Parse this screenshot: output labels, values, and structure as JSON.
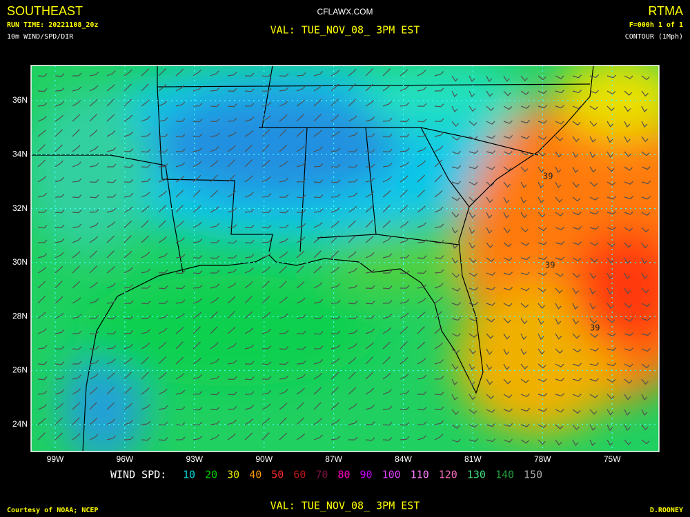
{
  "header": {
    "region": "SOUTHEAST",
    "run_time": "RUN TIME: 20221108_20z",
    "field": "10m WIND/SPD/DIR",
    "site": "CFLAWX.COM",
    "valid": "VAL: TUE_NOV_08_ 3PM EST",
    "model": "RTMA",
    "forecast": "F=000h 1 of 1",
    "contour": "CONTOUR (1Mph)"
  },
  "map": {
    "lat_labels": [
      "36N",
      "34N",
      "32N",
      "30N",
      "28N",
      "26N",
      "24N"
    ],
    "lon_labels": [
      "99W",
      "96W",
      "93W",
      "90W",
      "87W",
      "84W",
      "81W",
      "78W",
      "75W"
    ],
    "contour_labels": [
      "39",
      "39",
      "39"
    ]
  },
  "legend": {
    "title": "WIND SPD:",
    "items": [
      {
        "label": 10,
        "color": "#00dcdc"
      },
      {
        "label": 20,
        "color": "#00d000"
      },
      {
        "label": 30,
        "color": "#e6e600"
      },
      {
        "label": 40,
        "color": "#ff9a00"
      },
      {
        "label": 50,
        "color": "#ff2a2a"
      },
      {
        "label": 60,
        "color": "#c01818"
      },
      {
        "label": 70,
        "color": "#7a1040"
      },
      {
        "label": 80,
        "color": "#ff00c8"
      },
      {
        "label": 90,
        "color": "#c800ff"
      },
      {
        "label": 100,
        "color": "#e040ff"
      },
      {
        "label": 110,
        "color": "#ff80ff"
      },
      {
        "label": 120,
        "color": "#ff70c0"
      },
      {
        "label": 130,
        "color": "#40e080"
      },
      {
        "label": 140,
        "color": "#22a040"
      },
      {
        "label": 150,
        "color": "#a8a8a8"
      }
    ]
  },
  "footer": {
    "credit": "Courtesy of NOAA; NCEP",
    "valid": "VAL: TUE_NOV_08_ 3PM EST",
    "author": "D.ROONEY"
  }
}
